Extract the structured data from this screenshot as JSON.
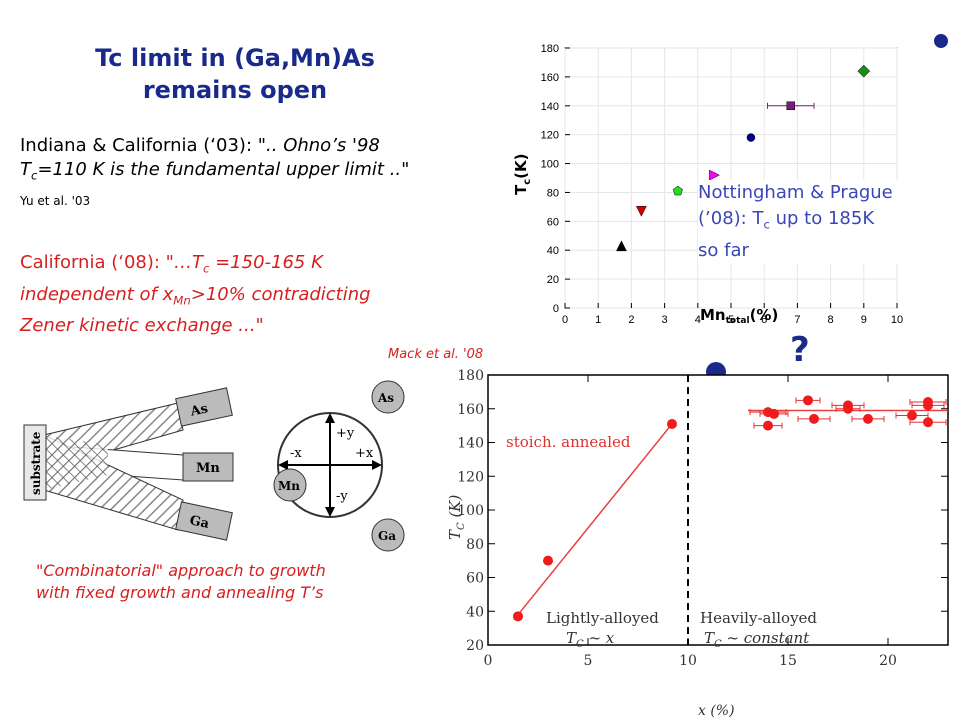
{
  "title_line1": "Tc limit in (Ga,Mn)As",
  "title_line2": "remains open",
  "quote_indiana": {
    "prefix": "Indiana & California (‘03): \"",
    "italic1": ".. Ohno’s '98",
    "tc": "T",
    "tc_sub": "c",
    "italic2": "=110 K is the fundamental upper limit  ..\"",
    "cite": "Yu et al. '03"
  },
  "quote_california": {
    "prefix": "California (‘08): \"",
    "part1": "…T",
    "tc_sub": "c",
    "part2": " =150-165 K",
    "line2a": "independent of x",
    "mn_sub": "Mn",
    "line2b": ">10% contradicting",
    "line3": "Zener kinetic exchange ...\""
  },
  "mack_cite": "Mack et al. '08",
  "combinatorial_line1": "\"Combinatorial\" approach to growth",
  "combinatorial_line2": "with fixed growth and annealing T’s",
  "nottingham_line1": "Nottingham & Prague",
  "nottingham_line2a": "(’08): T",
  "nottingham_sub": "c",
  "nottingham_line2b": " up to 185K",
  "nottingham_line3": "so far",
  "question_mark": "?",
  "diagram": {
    "substrate": "substrate",
    "as": "As",
    "mn": "Mn",
    "ga": "Ga",
    "plus_y": "+y",
    "minus_y": "-y",
    "minus_x": "-x",
    "plus_x": "+x"
  },
  "chart_data": [
    {
      "type": "scatter",
      "xlabel": "Mn",
      "xlabel_sub": "total",
      "xlabel_suffix": "(%)",
      "ylabel": "T",
      "ylabel_sub": "c",
      "ylabel_suffix": "(K)",
      "xlim": [
        0,
        10
      ],
      "ylim": [
        0,
        180
      ],
      "xticks": [
        0,
        1,
        2,
        3,
        4,
        5,
        6,
        7,
        8,
        9,
        10
      ],
      "yticks": [
        0,
        20,
        40,
        60,
        80,
        100,
        120,
        140,
        160,
        180
      ],
      "points": [
        {
          "x": 1.7,
          "y": 43,
          "marker": "triangle-up",
          "color": "#000000"
        },
        {
          "x": 2.3,
          "y": 67,
          "marker": "triangle-down",
          "color": "#d40000"
        },
        {
          "x": 3.4,
          "y": 81,
          "marker": "pentagon",
          "color": "#22dd22"
        },
        {
          "x": 4.5,
          "y": 92,
          "marker": "triangle-right",
          "color": "#ff00ff"
        },
        {
          "x": 5.6,
          "y": 118,
          "marker": "circle",
          "color": "#000088"
        },
        {
          "x": 6.8,
          "y": 140,
          "marker": "square",
          "color": "#7a1a7a",
          "xerr": 0.7
        },
        {
          "x": 9.0,
          "y": 164,
          "marker": "diamond",
          "color": "#1a8a1a"
        }
      ]
    },
    {
      "type": "scatter",
      "xlabel": "x (%)",
      "ylabel": "T",
      "ylabel_sub": "C",
      "ylabel_suffix": " (K)",
      "xlim": [
        0,
        23
      ],
      "ylim": [
        20,
        180
      ],
      "xticks": [
        0,
        5,
        10,
        15,
        20
      ],
      "yticks": [
        20,
        40,
        60,
        80,
        100,
        120,
        140,
        160,
        180
      ],
      "legend": "stoich. annealed",
      "region_left": "Lightly-alloyed",
      "region_right": "Heavily-alloyed",
      "law_left_prefix": "T",
      "law_left_sub": "C",
      "law_left_suffix": " ~ x",
      "law_right_prefix": "T",
      "law_right_sub": "C",
      "law_right_suffix": " ~ constant",
      "divider_x": 10,
      "points": [
        {
          "x": 1.5,
          "y": 37,
          "xerr": 0
        },
        {
          "x": 3.0,
          "y": 70,
          "xerr": 0
        },
        {
          "x": 9.2,
          "y": 151,
          "xerr": 0
        },
        {
          "x": 14.0,
          "y": 158,
          "xerr": 0.9
        },
        {
          "x": 14.0,
          "y": 150,
          "xerr": 0.7
        },
        {
          "x": 14.3,
          "y": 157,
          "xerr": 0.7
        },
        {
          "x": 16.0,
          "y": 165,
          "xerr": 0.6
        },
        {
          "x": 16.3,
          "y": 154,
          "xerr": 0.8
        },
        {
          "x": 18.0,
          "y": 162,
          "xerr": 0.8
        },
        {
          "x": 18.0,
          "y": 160,
          "xerr": 0.6
        },
        {
          "x": 19.0,
          "y": 154,
          "xerr": 0.8
        },
        {
          "x": 21.2,
          "y": 156,
          "xerr": 0.8
        },
        {
          "x": 22.0,
          "y": 164,
          "xerr": 0.9
        },
        {
          "x": 22.0,
          "y": 162,
          "xerr": 0.8
        },
        {
          "x": 22.0,
          "y": 152,
          "xerr": 0.9
        }
      ],
      "fit_left": [
        [
          1.3,
          35
        ],
        [
          9.2,
          151
        ]
      ],
      "fit_right": [
        [
          13.0,
          159
        ],
        [
          23.0,
          159
        ]
      ]
    }
  ]
}
